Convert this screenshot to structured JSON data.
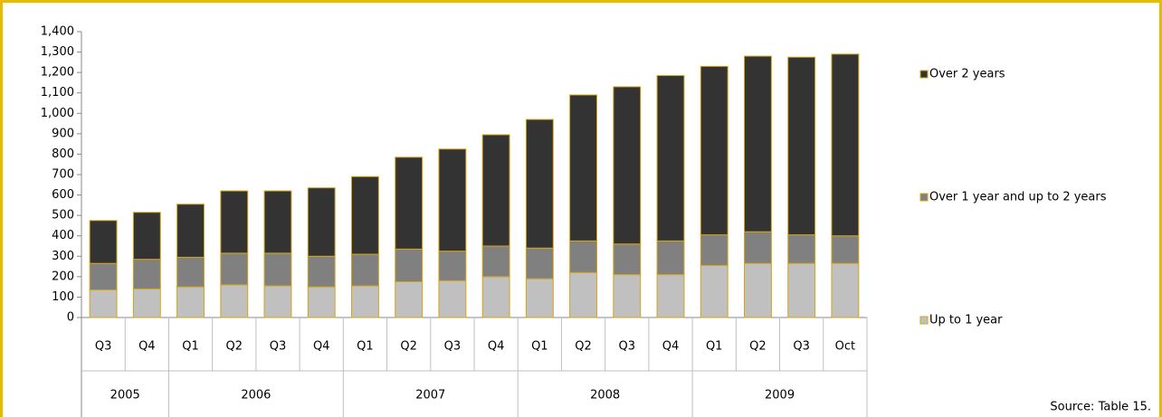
{
  "chart_data": {
    "type": "stacked_bar",
    "groups": [
      {
        "label": "2005",
        "categories": [
          "Q3",
          "Q4"
        ]
      },
      {
        "label": "2006",
        "categories": [
          "Q1",
          "Q2",
          "Q3",
          "Q4"
        ]
      },
      {
        "label": "2007",
        "categories": [
          "Q1",
          "Q2",
          "Q3",
          "Q4"
        ]
      },
      {
        "label": "2008",
        "categories": [
          "Q1",
          "Q2",
          "Q3",
          "Q4"
        ]
      },
      {
        "label": "2009",
        "categories": [
          "Q1",
          "Q2",
          "Q3",
          "Oct"
        ]
      }
    ],
    "series": [
      {
        "name": "Up to 1 year",
        "color": "#c0c0c0",
        "values": [
          135,
          140,
          150,
          160,
          155,
          150,
          155,
          175,
          180,
          200,
          190,
          220,
          210,
          210,
          255,
          265,
          265,
          265
        ]
      },
      {
        "name": "Over 1 year and up to 2 years",
        "color": "#808080",
        "values": [
          130,
          145,
          145,
          155,
          160,
          150,
          155,
          160,
          145,
          150,
          150,
          155,
          150,
          165,
          150,
          155,
          140,
          135
        ]
      },
      {
        "name": "Over 2 years",
        "color": "#333333",
        "values": [
          210,
          230,
          260,
          305,
          305,
          335,
          380,
          450,
          500,
          545,
          630,
          715,
          770,
          810,
          825,
          860,
          870,
          890
        ]
      }
    ],
    "edge_color": "#d4a517",
    "ylim": [
      0,
      1400
    ],
    "yticks": [
      0,
      100,
      200,
      300,
      400,
      500,
      600,
      700,
      800,
      900,
      {
        "value": 1000,
        "label": "1,000"
      },
      {
        "value": 1100,
        "label": "1,100"
      },
      {
        "value": 1200,
        "label": "1,200"
      },
      {
        "value": 1300,
        "label": "1,300"
      },
      {
        "value": 1400,
        "label": "1,400"
      }
    ],
    "source": "Source: Table 15."
  }
}
